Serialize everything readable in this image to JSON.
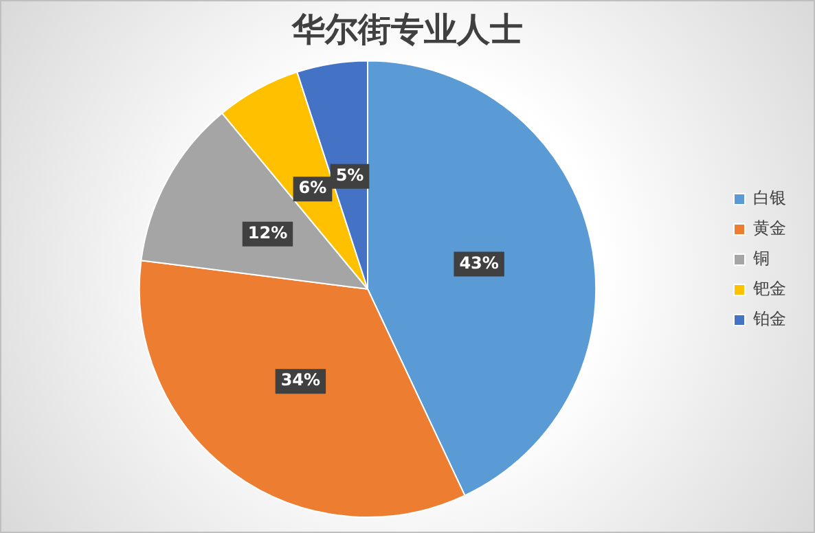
{
  "chart_data": {
    "type": "pie",
    "title": "华尔街专业人士",
    "categories": [
      "白银",
      "黄金",
      "铜",
      "钯金",
      "铂金"
    ],
    "values": [
      43,
      34,
      12,
      6,
      5
    ],
    "value_labels": [
      "43%",
      "34%",
      "12%",
      "6%",
      "5%"
    ],
    "colors": [
      "#5b9bd5",
      "#ed7d31",
      "#a5a5a5",
      "#ffc000",
      "#4472c4"
    ],
    "legend": "right"
  }
}
